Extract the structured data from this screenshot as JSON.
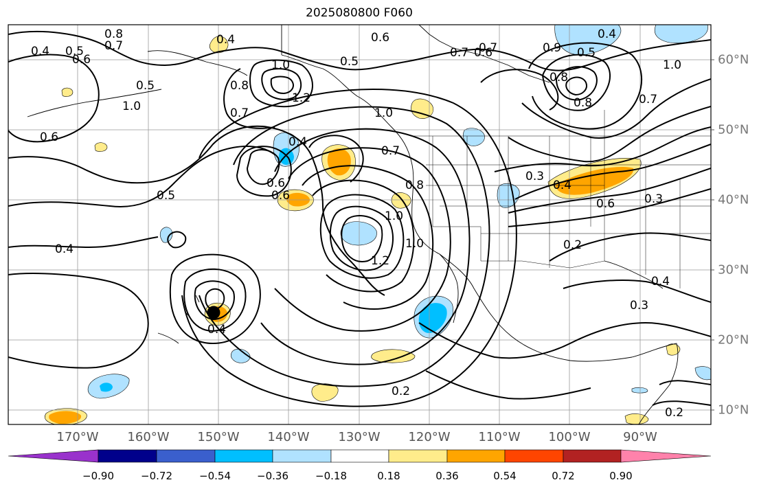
{
  "title": "2025080800 F060",
  "longitude_labels": [
    "170°W",
    "160°W",
    "150°W",
    "140°W",
    "130°W",
    "120°W",
    "110°W",
    "100°W",
    "90°W"
  ],
  "latitude_labels": [
    "60°N",
    "50°N",
    "40°N",
    "30°N",
    "20°N",
    "10°N"
  ],
  "colorbar": {
    "ticks": [
      "−0.90",
      "−0.72",
      "−0.54",
      "−0.36",
      "−0.18",
      "0.18",
      "0.36",
      "0.54",
      "0.72",
      "0.90"
    ],
    "colors": [
      "#9932cc",
      "#00008b",
      "#3a5fcd",
      "#00bfff",
      "#b0e2ff",
      "#ffffff",
      "#ffec8b",
      "#ffa500",
      "#ff4500",
      "#b22222",
      "#ff82ab"
    ]
  },
  "contour_labels": [
    "0.4",
    "0.5",
    "0.6",
    "0.7",
    "0.8",
    "1.0",
    "0.4",
    "0.5",
    "0.6",
    "0.7",
    "1.2",
    "1.0",
    "0.8",
    "0.7",
    "0.6",
    "0.7",
    "0.6",
    "0.5",
    "0.4",
    "0.4",
    "0.5",
    "0.6",
    "0.6",
    "0.8",
    "1.0",
    "1.2",
    "1.0",
    "0.7",
    "0.5",
    "0.8",
    "1.0",
    "1.0",
    "0.4",
    "0.9",
    "0.8",
    "0.3",
    "0.4",
    "0.6",
    "0.7",
    "0.3",
    "0.2",
    "0.4",
    "0.3",
    "0.4",
    "0.2",
    "0.2"
  ],
  "marker": {
    "name": "storm-center"
  }
}
